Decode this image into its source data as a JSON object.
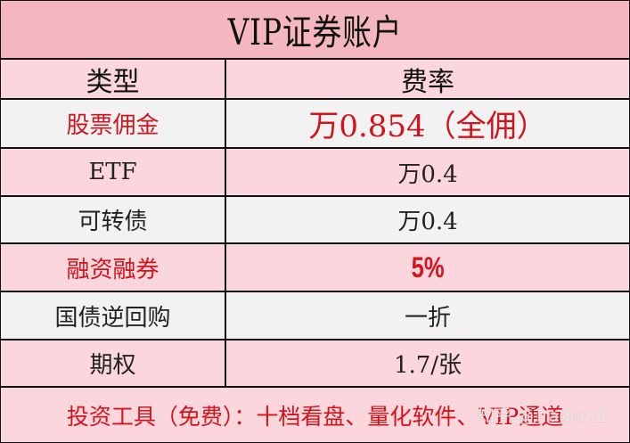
{
  "title": "VIP证券账户",
  "header": {
    "col_type": "类型",
    "col_rate": "费率"
  },
  "rows": [
    {
      "type": "股票佣金",
      "rate": "万0.854（全佣）",
      "highlight": true
    },
    {
      "type": "ETF",
      "rate": "万0.4",
      "highlight": false
    },
    {
      "type": "可转债",
      "rate": "万0.4",
      "highlight": false
    },
    {
      "type": "融资融券",
      "rate": "5%",
      "highlight": true
    },
    {
      "type": "国债逆回购",
      "rate": "一折",
      "highlight": false
    },
    {
      "type": "期权",
      "rate": "1.7/张",
      "highlight": false
    }
  ],
  "footer": "投资工具（免费）：十档看盘、量化软件、VIP通道",
  "watermark": "知乎 @Trader11",
  "colors": {
    "title_bg": "#f4b6bf",
    "pink_row": "#fbd6dc",
    "grey_row": "#f2f2f2",
    "accent_red": "#d4141c"
  }
}
